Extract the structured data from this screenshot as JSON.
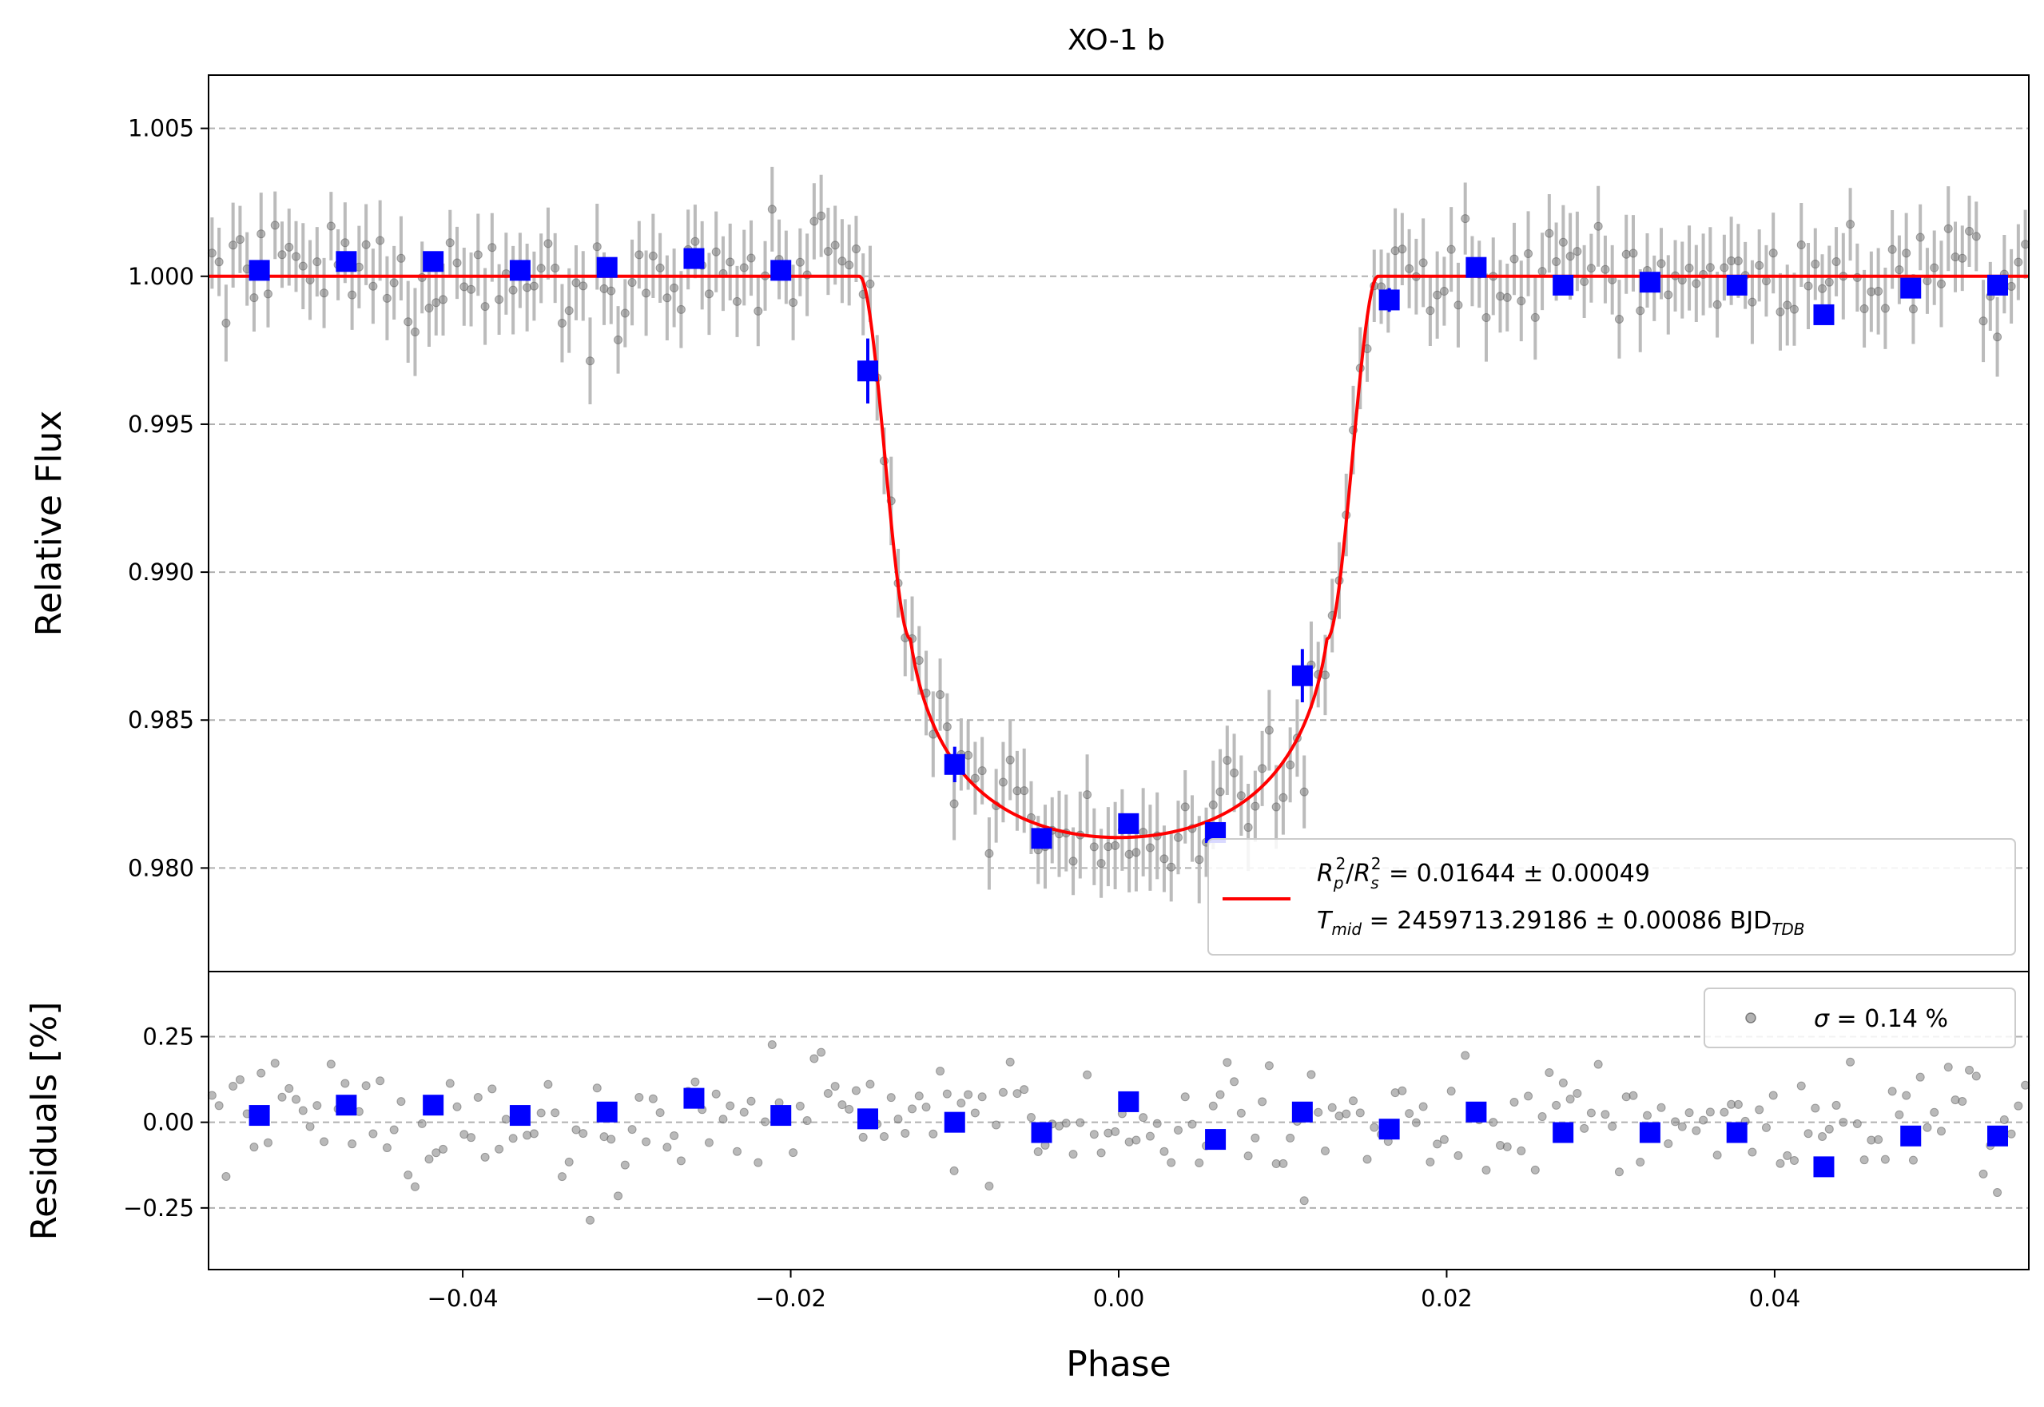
{
  "colors": {
    "model": "#ff0000",
    "binned": "#0000ff",
    "raw": "#808080",
    "raw_err": "#bbbbbb",
    "grid": "#b0b0b0"
  },
  "chart_data": [
    {
      "type": "scatter",
      "panel": "top",
      "title": "XO-1 b",
      "xlabel": "",
      "ylabel": "Relative Flux",
      "xlim": [
        -0.0555,
        0.0555
      ],
      "ylim": [
        0.9765,
        1.0068
      ],
      "yticks": [
        0.98,
        0.985,
        0.99,
        0.995,
        1.0,
        1.005
      ],
      "ytick_labels": [
        "0.980",
        "0.985",
        "0.990",
        "0.995",
        "1.000",
        "1.005"
      ],
      "grid": "y-dashed",
      "legend_position": "lower-right",
      "legend": {
        "line1": {
          "sym1": "R",
          "sub1": "p",
          "sup1": "2",
          "slash": "/",
          "sym2": "R",
          "sub2": "s",
          "sup2": "2",
          "value": " = 0.01644 ± 0.00049"
        },
        "line2": {
          "sym": "T",
          "sub": "mid",
          "value": " = 2459713.29186 ± 0.00086 BJD",
          "unit_sub": "TDB"
        }
      },
      "model_params": {
        "depth": 0.01644,
        "t1": -0.0158,
        "t2": -0.0127,
        "u1": 0.3,
        "u2": 0.2
      },
      "binned": {
        "x": [
          -0.0524,
          -0.0471,
          -0.0418,
          -0.0365,
          -0.0312,
          -0.0259,
          -0.0206,
          -0.0153,
          -0.01,
          -0.0047,
          0.0006,
          0.0059,
          0.0112,
          0.0165,
          0.0218,
          0.0271,
          0.0324,
          0.0377,
          0.043,
          0.0483,
          0.0536
        ],
        "y": [
          1.0002,
          1.0005,
          1.0005,
          1.0002,
          1.0003,
          1.0006,
          1.0002,
          0.9968,
          0.9835,
          0.981,
          0.9815,
          0.9812,
          0.9865,
          0.9992,
          1.0003,
          0.9997,
          0.9998,
          0.9997,
          0.9987,
          0.9996,
          0.9997
        ],
        "yerr": [
          0.0003,
          0.0003,
          0.0003,
          0.0003,
          0.0003,
          0.0003,
          0.0003,
          0.0011,
          0.0006,
          0.0003,
          0.0003,
          0.0003,
          0.0009,
          0.0004,
          0.0003,
          0.0003,
          0.0003,
          0.0003,
          0.0003,
          0.0003,
          0.0003
        ]
      }
    },
    {
      "type": "scatter",
      "panel": "bottom",
      "xlabel": "Phase",
      "ylabel": "Residuals [%]",
      "xlim": [
        -0.0555,
        0.0555
      ],
      "ylim": [
        -0.43,
        0.44
      ],
      "xticks": [
        -0.04,
        -0.02,
        0.0,
        0.02,
        0.04
      ],
      "xtick_labels": [
        "−0.04",
        "−0.02",
        "0.00",
        "0.02",
        "0.04"
      ],
      "yticks": [
        -0.25,
        0.0,
        0.25
      ],
      "ytick_labels": [
        "−0.25",
        "0.00",
        "0.25"
      ],
      "grid": "y-dashed",
      "legend_position": "upper-right",
      "legend": {
        "sym": "σ",
        "value": " = 0.14 %"
      },
      "binned": {
        "x": [
          -0.0524,
          -0.0471,
          -0.0418,
          -0.0365,
          -0.0312,
          -0.0259,
          -0.0206,
          -0.0153,
          -0.01,
          -0.0047,
          0.0006,
          0.0059,
          0.0112,
          0.0165,
          0.0218,
          0.0271,
          0.0324,
          0.0377,
          0.043,
          0.0483,
          0.0536
        ],
        "y": [
          0.02,
          0.05,
          0.05,
          0.02,
          0.03,
          0.07,
          0.02,
          0.01,
          0.0,
          -0.03,
          0.06,
          -0.05,
          0.03,
          -0.02,
          0.03,
          -0.03,
          -0.03,
          -0.03,
          -0.13,
          -0.04,
          -0.04
        ]
      }
    }
  ]
}
